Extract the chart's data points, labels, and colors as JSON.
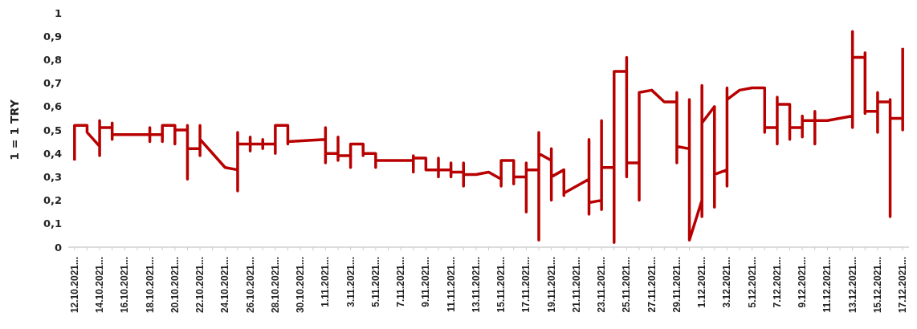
{
  "chart_data": {
    "type": "line",
    "ylabel": "1 = 1 TRY",
    "x": [
      "2021-10-12",
      "2021-10-12",
      "2021-10-13",
      "2021-10-13",
      "2021-10-14",
      "2021-10-14",
      "2021-10-14",
      "2021-10-14",
      "2021-10-15",
      "2021-10-15",
      "2021-10-15",
      "2021-10-15",
      "2021-10-18",
      "2021-10-18",
      "2021-10-18",
      "2021-10-18",
      "2021-10-19",
      "2021-10-19",
      "2021-10-19",
      "2021-10-19",
      "2021-10-20",
      "2021-10-20",
      "2021-10-20",
      "2021-10-20",
      "2021-10-21",
      "2021-10-21",
      "2021-10-21",
      "2021-10-21",
      "2021-10-22",
      "2021-10-22",
      "2021-10-22",
      "2021-10-22",
      "2021-10-24",
      "2021-10-25",
      "2021-10-25",
      "2021-10-25",
      "2021-10-25",
      "2021-10-26",
      "2021-10-26",
      "2021-10-26",
      "2021-10-26",
      "2021-10-27",
      "2021-10-27",
      "2021-10-27",
      "2021-10-27",
      "2021-10-28",
      "2021-10-28",
      "2021-10-28",
      "2021-10-28",
      "2021-10-29",
      "2021-10-29",
      "2021-10-29",
      "2021-10-29",
      "2021-11-01",
      "2021-11-01",
      "2021-11-01",
      "2021-11-01",
      "2021-11-02",
      "2021-11-02",
      "2021-11-02",
      "2021-11-02",
      "2021-11-03",
      "2021-11-03",
      "2021-11-03",
      "2021-11-03",
      "2021-11-04",
      "2021-11-04",
      "2021-11-04",
      "2021-11-05",
      "2021-11-05",
      "2021-11-05",
      "2021-11-08",
      "2021-11-08",
      "2021-11-08",
      "2021-11-08",
      "2021-11-09",
      "2021-11-09",
      "2021-11-10",
      "2021-11-10",
      "2021-11-10",
      "2021-11-10",
      "2021-11-11",
      "2021-11-11",
      "2021-11-11",
      "2021-11-11",
      "2021-11-12",
      "2021-11-12",
      "2021-11-12",
      "2021-11-12",
      "2021-11-13",
      "2021-11-14",
      "2021-11-15",
      "2021-11-15",
      "2021-11-15",
      "2021-11-15",
      "2021-11-16",
      "2021-11-16",
      "2021-11-16",
      "2021-11-17",
      "2021-11-17",
      "2021-11-17",
      "2021-11-17",
      "2021-11-18",
      "2021-11-18",
      "2021-11-18",
      "2021-11-18",
      "2021-11-19",
      "2021-11-19",
      "2021-11-19",
      "2021-11-19",
      "2021-11-20",
      "2021-11-20",
      "2021-11-20",
      "2021-11-22",
      "2021-11-22",
      "2021-11-22",
      "2021-11-22",
      "2021-11-23",
      "2021-11-23",
      "2021-11-23",
      "2021-11-23",
      "2021-11-24",
      "2021-11-24",
      "2021-11-24",
      "2021-11-25",
      "2021-11-25",
      "2021-11-25",
      "2021-11-25",
      "2021-11-26",
      "2021-11-26",
      "2021-11-26",
      "2021-11-27",
      "2021-11-28",
      "2021-11-29",
      "2021-11-29",
      "2021-11-29",
      "2021-11-29",
      "2021-11-30",
      "2021-11-30",
      "2021-11-30",
      "2021-12-01",
      "2021-12-01",
      "2021-12-01",
      "2021-12-01",
      "2021-12-02",
      "2021-12-02",
      "2021-12-02",
      "2021-12-03",
      "2021-12-03",
      "2021-12-03",
      "2021-12-03",
      "2021-12-04",
      "2021-12-05",
      "2021-12-06",
      "2021-12-06",
      "2021-12-06",
      "2021-12-06",
      "2021-12-07",
      "2021-12-07",
      "2021-12-07",
      "2021-12-07",
      "2021-12-08",
      "2021-12-08",
      "2021-12-08",
      "2021-12-09",
      "2021-12-09",
      "2021-12-09",
      "2021-12-09",
      "2021-12-10",
      "2021-12-10",
      "2021-12-10",
      "2021-12-10",
      "2021-12-11",
      "2021-12-13",
      "2021-12-13",
      "2021-12-13",
      "2021-12-13",
      "2021-12-14",
      "2021-12-14",
      "2021-12-14",
      "2021-12-14",
      "2021-12-15",
      "2021-12-15",
      "2021-12-15",
      "2021-12-15",
      "2021-12-16",
      "2021-12-16",
      "2021-12-16",
      "2021-12-16",
      "2021-12-17",
      "2021-12-17",
      "2021-12-17"
    ],
    "series": [
      {
        "color": "#b80000",
        "values": [
          0.37,
          0.52,
          0.52,
          0.49,
          0.43,
          0.39,
          0.54,
          0.51,
          0.51,
          0.53,
          0.46,
          0.48,
          0.48,
          0.51,
          0.45,
          0.48,
          0.48,
          0.45,
          0.52,
          0.52,
          0.52,
          0.52,
          0.44,
          0.5,
          0.5,
          0.52,
          0.29,
          0.42,
          0.42,
          0.39,
          0.52,
          0.46,
          0.34,
          0.33,
          0.24,
          0.49,
          0.44,
          0.44,
          0.47,
          0.41,
          0.44,
          0.44,
          0.46,
          0.42,
          0.44,
          0.44,
          0.4,
          0.52,
          0.52,
          0.52,
          0.52,
          0.44,
          0.45,
          0.46,
          0.51,
          0.36,
          0.4,
          0.4,
          0.47,
          0.37,
          0.39,
          0.39,
          0.34,
          0.43,
          0.44,
          0.44,
          0.39,
          0.4,
          0.4,
          0.34,
          0.37,
          0.37,
          0.32,
          0.39,
          0.38,
          0.38,
          0.33,
          0.33,
          0.3,
          0.38,
          0.33,
          0.33,
          0.36,
          0.3,
          0.32,
          0.32,
          0.36,
          0.26,
          0.31,
          0.31,
          0.32,
          0.29,
          0.26,
          0.37,
          0.37,
          0.37,
          0.27,
          0.3,
          0.3,
          0.15,
          0.36,
          0.33,
          0.33,
          0.03,
          0.49,
          0.4,
          0.37,
          0.42,
          0.2,
          0.3,
          0.33,
          0.22,
          0.23,
          0.29,
          0.46,
          0.14,
          0.19,
          0.2,
          0.16,
          0.54,
          0.34,
          0.34,
          0.02,
          0.75,
          0.75,
          0.81,
          0.3,
          0.36,
          0.36,
          0.2,
          0.66,
          0.67,
          0.62,
          0.62,
          0.66,
          0.36,
          0.43,
          0.42,
          0.63,
          0.03,
          0.2,
          0.13,
          0.69,
          0.53,
          0.6,
          0.17,
          0.31,
          0.33,
          0.26,
          0.68,
          0.63,
          0.67,
          0.68,
          0.68,
          0.68,
          0.49,
          0.51,
          0.51,
          0.44,
          0.64,
          0.61,
          0.61,
          0.46,
          0.51,
          0.51,
          0.47,
          0.56,
          0.54,
          0.54,
          0.44,
          0.58,
          0.54,
          0.54,
          0.56,
          0.51,
          0.92,
          0.81,
          0.81,
          0.83,
          0.57,
          0.58,
          0.58,
          0.49,
          0.66,
          0.62,
          0.62,
          0.63,
          0.13,
          0.55,
          0.55,
          0.5,
          0.85
        ]
      }
    ],
    "xlim": [
      "2021-10-11T12:00",
      "2021-12-17T12:00"
    ],
    "xticks": [
      {
        "value": "2021-10-12",
        "label": "12.10.2021..."
      },
      {
        "value": "2021-10-13",
        "label": null
      },
      {
        "value": "2021-10-14",
        "label": "14.10.2021..."
      },
      {
        "value": "2021-10-15",
        "label": null
      },
      {
        "value": "2021-10-16",
        "label": "16.10.2021..."
      },
      {
        "value": "2021-10-17",
        "label": null
      },
      {
        "value": "2021-10-18",
        "label": "18.10.2021..."
      },
      {
        "value": "2021-10-19",
        "label": null
      },
      {
        "value": "2021-10-20",
        "label": "20.10.2021..."
      },
      {
        "value": "2021-10-21",
        "label": null
      },
      {
        "value": "2021-10-22",
        "label": "22.10.2021..."
      },
      {
        "value": "2021-10-23",
        "label": null
      },
      {
        "value": "2021-10-24",
        "label": "24.10.2021..."
      },
      {
        "value": "2021-10-25",
        "label": null
      },
      {
        "value": "2021-10-26",
        "label": "26.10.2021..."
      },
      {
        "value": "2021-10-27",
        "label": null
      },
      {
        "value": "2021-10-28",
        "label": "28.10.2021..."
      },
      {
        "value": "2021-10-29",
        "label": null
      },
      {
        "value": "2021-10-30",
        "label": "30.10.2021..."
      },
      {
        "value": "2021-10-31",
        "label": null
      },
      {
        "value": "2021-11-01",
        "label": "1.11.2021..."
      },
      {
        "value": "2021-11-02",
        "label": null
      },
      {
        "value": "2021-11-03",
        "label": "3.11.2021..."
      },
      {
        "value": "2021-11-04",
        "label": null
      },
      {
        "value": "2021-11-05",
        "label": "5.11.2021..."
      },
      {
        "value": "2021-11-06",
        "label": null
      },
      {
        "value": "2021-11-07",
        "label": "7.11.2021..."
      },
      {
        "value": "2021-11-08",
        "label": null
      },
      {
        "value": "2021-11-09",
        "label": "9.11.2021..."
      },
      {
        "value": "2021-11-10",
        "label": null
      },
      {
        "value": "2021-11-11",
        "label": "11.11.2021..."
      },
      {
        "value": "2021-11-12",
        "label": null
      },
      {
        "value": "2021-11-13",
        "label": "13.11.2021..."
      },
      {
        "value": "2021-11-14",
        "label": null
      },
      {
        "value": "2021-11-15",
        "label": "15.11.2021..."
      },
      {
        "value": "2021-11-16",
        "label": null
      },
      {
        "value": "2021-11-17",
        "label": "17.11.2021..."
      },
      {
        "value": "2021-11-18",
        "label": null
      },
      {
        "value": "2021-11-19",
        "label": "19.11.2021..."
      },
      {
        "value": "2021-11-20",
        "label": null
      },
      {
        "value": "2021-11-21",
        "label": "21.11.2021..."
      },
      {
        "value": "2021-11-22",
        "label": null
      },
      {
        "value": "2021-11-23",
        "label": "23.11.2021..."
      },
      {
        "value": "2021-11-24",
        "label": null
      },
      {
        "value": "2021-11-25",
        "label": "25.11.2021..."
      },
      {
        "value": "2021-11-26",
        "label": null
      },
      {
        "value": "2021-11-27",
        "label": "27.11.2021..."
      },
      {
        "value": "2021-11-28",
        "label": null
      },
      {
        "value": "2021-11-29",
        "label": "29.11.2021..."
      },
      {
        "value": "2021-11-30",
        "label": null
      },
      {
        "value": "2021-12-01",
        "label": "1.12.2021..."
      },
      {
        "value": "2021-12-02",
        "label": null
      },
      {
        "value": "2021-12-03",
        "label": "3.12.2021..."
      },
      {
        "value": "2021-12-04",
        "label": null
      },
      {
        "value": "2021-12-05",
        "label": "5.12.2021..."
      },
      {
        "value": "2021-12-06",
        "label": null
      },
      {
        "value": "2021-12-07",
        "label": "7.12.2021..."
      },
      {
        "value": "2021-12-08",
        "label": null
      },
      {
        "value": "2021-12-09",
        "label": "9.12.2021..."
      },
      {
        "value": "2021-12-10",
        "label": null
      },
      {
        "value": "2021-12-11",
        "label": "11.12.2021..."
      },
      {
        "value": "2021-12-12",
        "label": null
      },
      {
        "value": "2021-12-13",
        "label": "13.12.2021..."
      },
      {
        "value": "2021-12-14",
        "label": null
      },
      {
        "value": "2021-12-15",
        "label": "15.12.2021..."
      },
      {
        "value": "2021-12-16",
        "label": null
      },
      {
        "value": "2021-12-17",
        "label": "17.12.2021..."
      }
    ],
    "ylim": [
      0,
      1
    ],
    "yticks": [
      0,
      {
        "value": 0.1,
        "label": "0,1"
      },
      {
        "value": 0.2,
        "label": "0,2"
      },
      {
        "value": 0.3,
        "label": "0,3"
      },
      {
        "value": 0.4,
        "label": "0,4"
      },
      {
        "value": 0.5,
        "label": "0,5"
      },
      {
        "value": 0.6,
        "label": "0,6"
      },
      {
        "value": 0.7,
        "label": "0,7"
      },
      {
        "value": 0.8,
        "label": "0,8"
      },
      {
        "value": 0.9,
        "label": "0,9"
      },
      1
    ],
    "grid": false,
    "marker": "none",
    "line_style": "solid"
  }
}
